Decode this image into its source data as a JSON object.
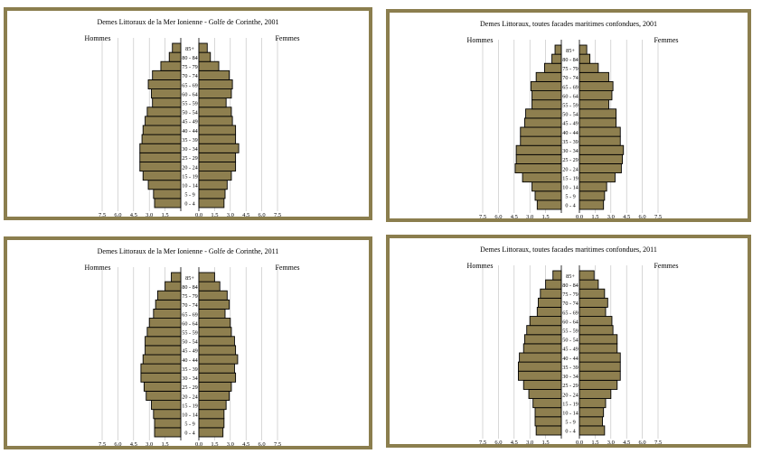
{
  "age_groups": [
    "0 - 4",
    "5 - 9",
    "10 - 14",
    "15 - 19",
    "20 - 24",
    "25 - 29",
    "30 - 34",
    "35 - 39",
    "40 - 44",
    "45 - 49",
    "50 - 54",
    "55 - 59",
    "60 - 64",
    "65 - 69",
    "70 - 74",
    "75 - 79",
    "80 - 84",
    "85+"
  ],
  "ticks": [
    "7.5",
    "6.0",
    "4.5",
    "3.0",
    "1.5",
    "0.0",
    "1.5",
    "3.0",
    "4.5",
    "6.0",
    "7.5"
  ],
  "chart_data": [
    {
      "type": "bar",
      "orientation": "population-pyramid",
      "title": "Demes Littoraux de la Mer Ionienne - Golfe de Corinthe, 2001",
      "left_label": "Hommes",
      "right_label": "Femmes",
      "xlim": [
        -7.5,
        7.5
      ],
      "categories": [
        "0 - 4",
        "5 - 9",
        "10 - 14",
        "15 - 19",
        "20 - 24",
        "25 - 29",
        "30 - 34",
        "35 - 39",
        "40 - 44",
        "45 - 49",
        "50 - 54",
        "55 - 59",
        "60 - 64",
        "65 - 69",
        "70 - 74",
        "75 - 79",
        "80 - 84",
        "85+"
      ],
      "series": [
        {
          "name": "Hommes",
          "values": [
            2.5,
            2.6,
            3.1,
            3.6,
            3.9,
            3.9,
            3.9,
            3.7,
            3.6,
            3.4,
            3.2,
            2.7,
            2.8,
            3.1,
            2.7,
            1.9,
            1.1,
            0.8
          ]
        },
        {
          "name": "Femmes",
          "values": [
            2.4,
            2.5,
            2.7,
            3.1,
            3.5,
            3.5,
            3.8,
            3.5,
            3.5,
            3.2,
            3.1,
            2.6,
            3.1,
            3.2,
            2.9,
            1.9,
            1.1,
            0.8
          ]
        }
      ]
    },
    {
      "type": "bar",
      "orientation": "population-pyramid",
      "title": "Demes Littoraux, toutes facades maritimes confondues, 2001",
      "left_label": "Hommes",
      "right_label": "Femmes",
      "xlim": [
        -7.5,
        7.5
      ],
      "categories": [
        "0 - 4",
        "5 - 9",
        "10 - 14",
        "15 - 19",
        "20 - 24",
        "25 - 29",
        "30 - 34",
        "35 - 39",
        "40 - 44",
        "45 - 49",
        "50 - 54",
        "55 - 59",
        "60 - 64",
        "65 - 69",
        "70 - 74",
        "75 - 79",
        "80 - 84",
        "85+"
      ],
      "series": [
        {
          "name": "Hommes",
          "values": [
            2.3,
            2.5,
            2.8,
            3.7,
            4.4,
            4.3,
            4.3,
            3.9,
            3.9,
            3.5,
            3.4,
            2.8,
            2.8,
            2.9,
            2.4,
            1.6,
            0.9,
            0.6
          ]
        },
        {
          "name": "Femmes",
          "values": [
            2.3,
            2.4,
            2.6,
            3.4,
            4.0,
            4.1,
            4.2,
            3.9,
            3.9,
            3.5,
            3.5,
            2.8,
            3.1,
            3.2,
            2.8,
            1.8,
            1.0,
            0.7
          ]
        }
      ]
    },
    {
      "type": "bar",
      "orientation": "population-pyramid",
      "title": "Demes Littoraux de la Mer Ionienne - Golfe de Corinthe, 2011",
      "left_label": "Hommes",
      "right_label": "Femmes",
      "xlim": [
        -7.5,
        7.5
      ],
      "categories": [
        "0 - 4",
        "5 - 9",
        "10 - 14",
        "15 - 19",
        "20 - 24",
        "25 - 29",
        "30 - 34",
        "35 - 39",
        "40 - 44",
        "45 - 49",
        "50 - 54",
        "55 - 59",
        "60 - 64",
        "65 - 69",
        "70 - 74",
        "75 - 79",
        "80 - 84",
        "85+"
      ],
      "series": [
        {
          "name": "Hommes",
          "values": [
            2.5,
            2.5,
            2.6,
            2.8,
            3.3,
            3.5,
            3.8,
            3.8,
            3.6,
            3.4,
            3.4,
            3.2,
            3.0,
            2.6,
            2.4,
            2.2,
            1.5,
            0.9
          ]
        },
        {
          "name": "Femmes",
          "values": [
            2.3,
            2.4,
            2.4,
            2.6,
            2.9,
            3.1,
            3.5,
            3.4,
            3.7,
            3.5,
            3.4,
            3.1,
            3.0,
            2.5,
            2.9,
            2.7,
            2.0,
            1.5
          ]
        }
      ]
    },
    {
      "type": "bar",
      "orientation": "population-pyramid",
      "title": "Demes Littoraux, toutes facades maritimes confondues, 2011",
      "left_label": "Hommes",
      "right_label": "Femmes",
      "xlim": [
        -7.5,
        7.5
      ],
      "categories": [
        "0 - 4",
        "5 - 9",
        "10 - 14",
        "15 - 19",
        "20 - 24",
        "25 - 29",
        "30 - 34",
        "35 - 39",
        "40 - 44",
        "45 - 49",
        "50 - 54",
        "55 - 59",
        "60 - 64",
        "65 - 69",
        "70 - 74",
        "75 - 79",
        "80 - 84",
        "85+"
      ],
      "series": [
        {
          "name": "Hommes",
          "values": [
            2.4,
            2.5,
            2.5,
            2.7,
            3.1,
            3.6,
            4.1,
            4.1,
            4.0,
            3.6,
            3.5,
            3.3,
            3.0,
            2.3,
            2.2,
            2.0,
            1.5,
            0.8
          ]
        },
        {
          "name": "Femmes",
          "values": [
            2.4,
            2.2,
            2.3,
            2.5,
            3.0,
            3.6,
            3.9,
            3.9,
            3.9,
            3.6,
            3.6,
            3.2,
            3.1,
            2.5,
            2.7,
            2.4,
            1.8,
            1.4
          ]
        }
      ]
    }
  ]
}
